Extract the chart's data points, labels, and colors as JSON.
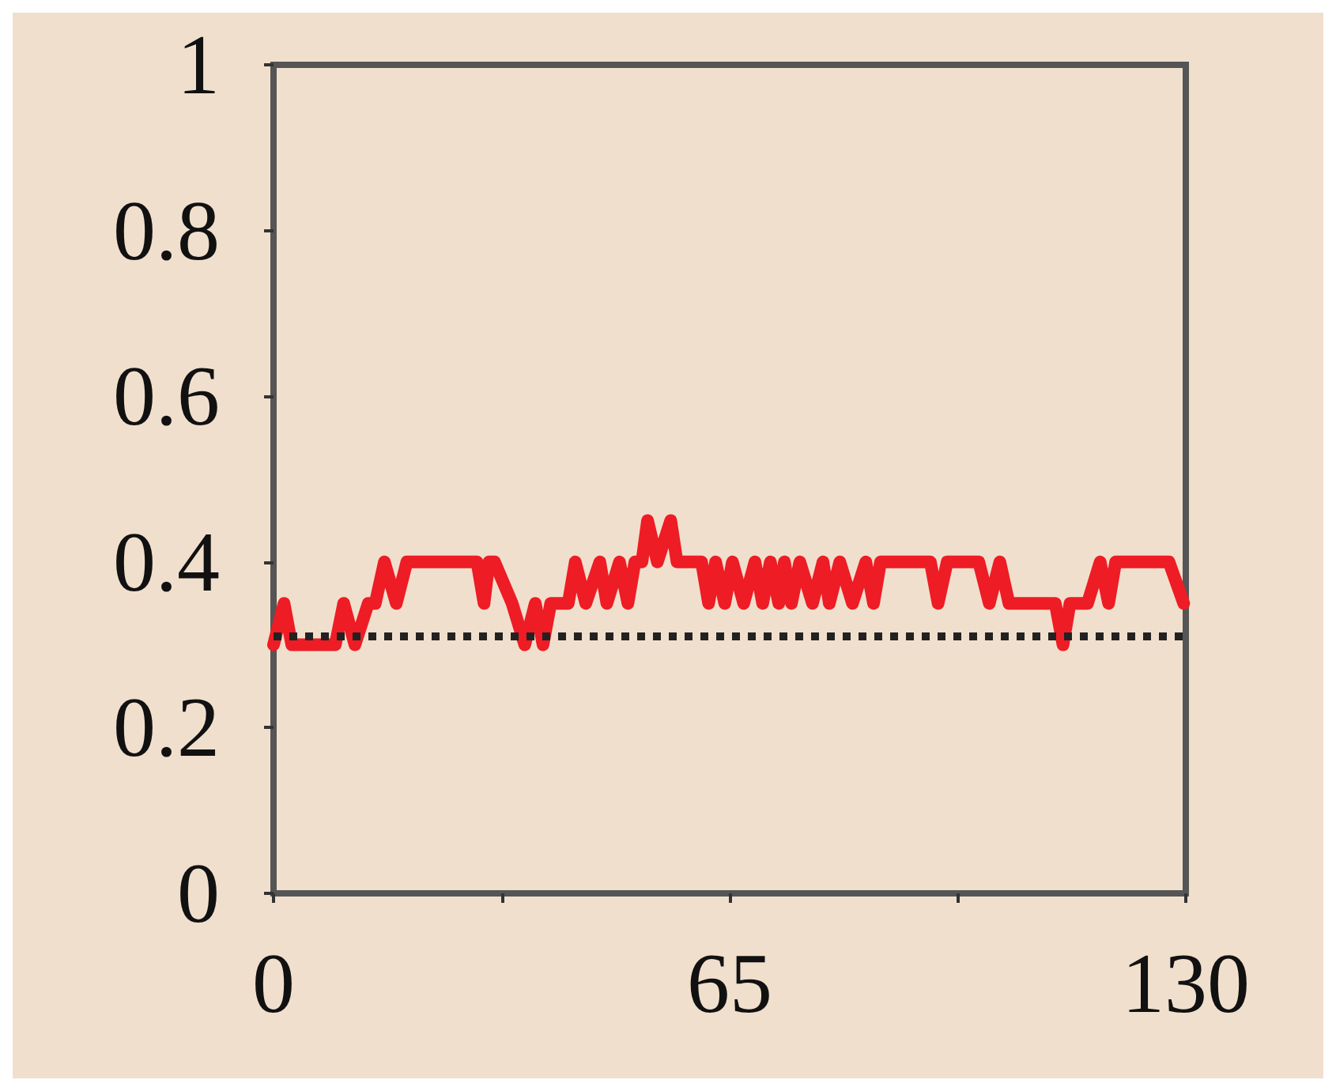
{
  "chart_data": {
    "type": "line",
    "xlim": [
      0,
      130
    ],
    "ylim": [
      0,
      1
    ],
    "xticks": [
      0,
      {
        "value": 32.5,
        "label": null
      },
      65,
      {
        "value": 97.5,
        "label": null
      },
      130
    ],
    "yticks": [
      0,
      0.2,
      0.4,
      0.6,
      0.8,
      1
    ],
    "grid": false,
    "line_style": "solid",
    "ref_lines": [
      {
        "axis": "y",
        "value": 0.31,
        "color": "#222222",
        "line_style": "dotted"
      }
    ],
    "series": [
      {
        "color": "#ee1c25",
        "x": [
          0,
          1.5,
          2.6,
          8.8,
          10,
          11.6,
          13.5,
          14.5,
          15.8,
          17.5,
          19,
          29,
          30,
          30.7,
          31.5,
          34,
          35.8,
          37.3,
          38.4,
          39.5,
          42,
          43,
          44.5,
          46.5,
          47.5,
          49.3,
          50.5,
          51.5,
          52.5,
          53.3,
          54.7,
          56.6,
          57.5,
          61,
          62,
          63,
          64.3,
          65.4,
          67,
          68.6,
          69.7,
          70.8,
          72,
          72.8,
          73.8,
          75,
          76.8,
          78.3,
          79.2,
          80.7,
          82.5,
          84.4,
          85.5,
          86.5,
          93.6,
          94.7,
          96,
          100.5,
          102,
          103.5,
          104.8,
          111.4,
          112.5,
          113.5,
          116,
          117.8,
          119,
          120,
          127.6,
          129.7
        ],
        "values": [
          0.3,
          0.35,
          0.3,
          0.3,
          0.35,
          0.3,
          0.35,
          0.35,
          0.4,
          0.35,
          0.4,
          0.4,
          0.35,
          0.4,
          0.4,
          0.35,
          0.3,
          0.35,
          0.3,
          0.35,
          0.35,
          0.4,
          0.35,
          0.4,
          0.35,
          0.4,
          0.35,
          0.4,
          0.4,
          0.45,
          0.4,
          0.45,
          0.4,
          0.4,
          0.35,
          0.4,
          0.35,
          0.4,
          0.35,
          0.4,
          0.35,
          0.4,
          0.35,
          0.4,
          0.35,
          0.4,
          0.35,
          0.4,
          0.35,
          0.4,
          0.35,
          0.4,
          0.35,
          0.4,
          0.4,
          0.35,
          0.4,
          0.4,
          0.35,
          0.4,
          0.35,
          0.35,
          0.3,
          0.35,
          0.35,
          0.4,
          0.35,
          0.4,
          0.4,
          0.35
        ]
      }
    ]
  }
}
